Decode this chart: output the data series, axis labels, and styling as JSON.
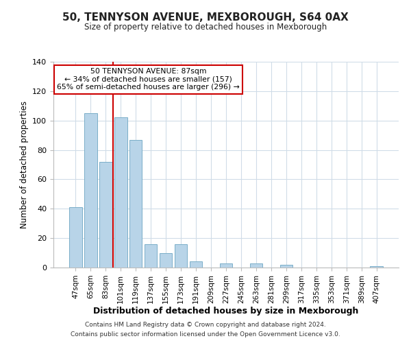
{
  "title": "50, TENNYSON AVENUE, MEXBOROUGH, S64 0AX",
  "subtitle": "Size of property relative to detached houses in Mexborough",
  "xlabel": "Distribution of detached houses by size in Mexborough",
  "ylabel": "Number of detached properties",
  "bar_labels": [
    "47sqm",
    "65sqm",
    "83sqm",
    "101sqm",
    "119sqm",
    "137sqm",
    "155sqm",
    "173sqm",
    "191sqm",
    "209sqm",
    "227sqm",
    "245sqm",
    "263sqm",
    "281sqm",
    "299sqm",
    "317sqm",
    "335sqm",
    "353sqm",
    "371sqm",
    "389sqm",
    "407sqm"
  ],
  "bar_values": [
    41,
    105,
    72,
    102,
    87,
    16,
    10,
    16,
    4,
    0,
    3,
    0,
    3,
    0,
    2,
    0,
    0,
    0,
    0,
    0,
    1
  ],
  "bar_color": "#b8d4e8",
  "bar_edge_color": "#7aaec8",
  "vline_x_index": 2,
  "vline_color": "#cc0000",
  "ylim": [
    0,
    140
  ],
  "yticks": [
    0,
    20,
    40,
    60,
    80,
    100,
    120,
    140
  ],
  "annotation_title": "50 TENNYSON AVENUE: 87sqm",
  "annotation_line1": "← 34% of detached houses are smaller (157)",
  "annotation_line2": "65% of semi-detached houses are larger (296) →",
  "annotation_box_color": "#ffffff",
  "annotation_box_edge": "#cc0000",
  "footer_line1": "Contains HM Land Registry data © Crown copyright and database right 2024.",
  "footer_line2": "Contains public sector information licensed under the Open Government Licence v3.0.",
  "background_color": "#ffffff",
  "grid_color": "#d0dce8"
}
